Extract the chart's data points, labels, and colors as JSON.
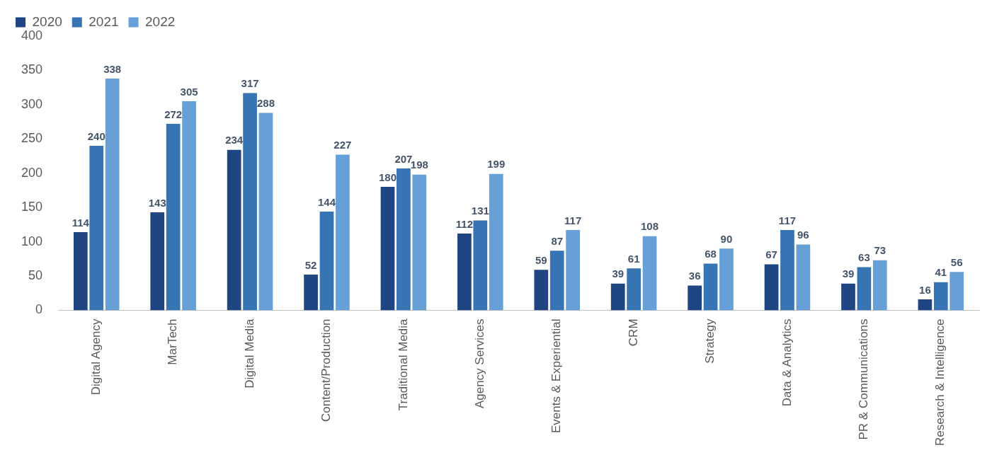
{
  "chart_data": {
    "type": "bar",
    "categories": [
      "Digital Agency",
      "MarTech",
      "Digital Media",
      "Content/Production",
      "Traditional Media",
      "Agency Services",
      "Events & Experiential",
      "CRM",
      "Strategy",
      "Data & Analytics",
      "PR & Communications",
      "Research & Intelligence"
    ],
    "series": [
      {
        "name": "2020",
        "color": "#1f4682",
        "values": [
          114,
          143,
          234,
          52,
          180,
          112,
          59,
          39,
          36,
          67,
          39,
          16
        ]
      },
      {
        "name": "2021",
        "color": "#3674b4",
        "values": [
          240,
          272,
          317,
          144,
          207,
          131,
          87,
          61,
          68,
          117,
          63,
          41
        ]
      },
      {
        "name": "2022",
        "color": "#67a0d6",
        "values": [
          338,
          305,
          288,
          227,
          198,
          199,
          117,
          108,
          90,
          96,
          73,
          56
        ]
      }
    ],
    "ylim": [
      0,
      400
    ],
    "yticks": [
      0,
      50,
      100,
      150,
      200,
      250,
      300,
      350,
      400
    ],
    "grid": false,
    "legend": "top left",
    "data_labels": true
  }
}
